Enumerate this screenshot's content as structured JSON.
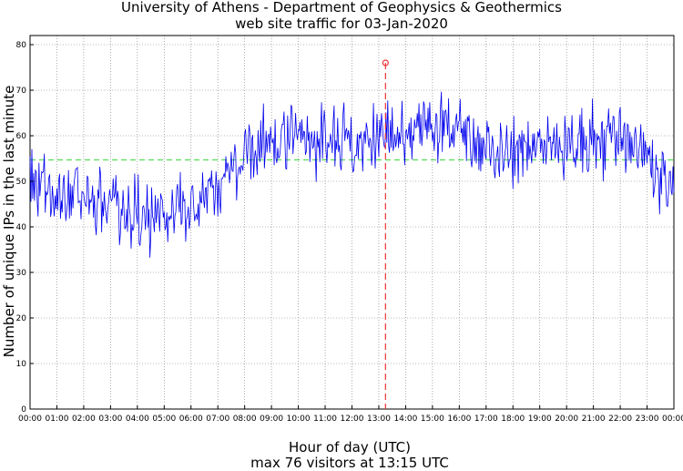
{
  "chart_data": {
    "type": "line",
    "title": "University of Athens - Department of Geophysics & Geothermics",
    "subtitle": "web site traffic for 03-Jan-2020",
    "xlabel": "Hour of day (UTC)",
    "xlabel_sub": "max 76 visitors at 13:15 UTC",
    "ylabel": "Number of unique IPs in the last minute",
    "xlim": [
      "00:00",
      "24:00"
    ],
    "ylim": [
      0,
      82
    ],
    "grid": true,
    "x_ticks": [
      "00:00",
      "01:00",
      "02:00",
      "03:00",
      "04:00",
      "05:00",
      "06:00",
      "07:00",
      "08:00",
      "09:00",
      "10:00",
      "11:00",
      "12:00",
      "13:00",
      "14:00",
      "15:00",
      "16:00",
      "17:00",
      "18:00",
      "19:00",
      "20:00",
      "21:00",
      "22:00",
      "23:00",
      "00:00"
    ],
    "y_ticks": [
      0,
      10,
      20,
      30,
      40,
      50,
      60,
      70,
      80
    ],
    "series_color": "#0000ee",
    "average_line": {
      "value": 54.7,
      "color": "#55dd55"
    },
    "max_marker": {
      "time": "13:15",
      "value": 76,
      "color": "#ee3333"
    },
    "series_trend": {
      "x": [
        "00:00",
        "00:30",
        "01:00",
        "01:30",
        "02:00",
        "02:30",
        "03:00",
        "03:30",
        "04:00",
        "04:30",
        "05:00",
        "05:30",
        "06:00",
        "06:30",
        "07:00",
        "07:30",
        "08:00",
        "08:30",
        "09:00",
        "09:30",
        "10:00",
        "10:30",
        "11:00",
        "11:30",
        "12:00",
        "12:30",
        "13:00",
        "13:30",
        "14:00",
        "14:30",
        "15:00",
        "15:30",
        "16:00",
        "16:30",
        "17:00",
        "17:30",
        "18:00",
        "18:30",
        "19:00",
        "19:30",
        "20:00",
        "20:30",
        "21:00",
        "21:30",
        "22:00",
        "22:30",
        "23:00",
        "23:30",
        "24:00"
      ],
      "values": [
        52,
        49,
        47,
        46,
        46,
        45,
        45,
        44,
        43,
        42,
        42,
        43,
        45,
        47,
        49,
        52,
        56,
        58,
        59,
        60,
        60,
        60,
        59,
        59,
        59,
        59,
        60,
        60,
        60,
        61,
        62,
        62,
        61,
        59,
        58,
        57,
        57,
        58,
        58,
        58,
        57,
        58,
        59,
        60,
        59,
        58,
        56,
        52,
        49
      ]
    }
  }
}
